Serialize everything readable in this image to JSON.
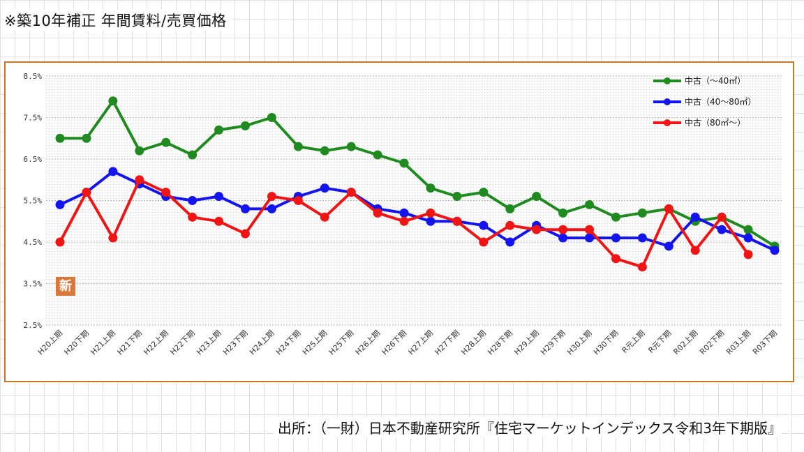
{
  "header": {
    "title": "※築10年補正 年間賃料/売買価格"
  },
  "footer": {
    "source": "出所：（一財）日本不動産研究所『住宅マーケットインデックス令和3年下期版』"
  },
  "badge": {
    "label": "新"
  },
  "chart_data": {
    "type": "line",
    "title": "",
    "xlabel": "",
    "ylabel": "",
    "ylim": [
      2.5,
      8.5
    ],
    "y_ticks": [
      "8.5%",
      "7.5%",
      "6.5%",
      "5.5%",
      "4.5%",
      "3.5%",
      "2.5%"
    ],
    "y_tick_values": [
      8.5,
      7.5,
      6.5,
      5.5,
      4.5,
      3.5,
      2.5
    ],
    "grid": "dotted",
    "legend_position": "top-right",
    "categories": [
      "H20上期",
      "H20下期",
      "H21上期",
      "H21下期",
      "H22上期",
      "H22下期",
      "H23上期",
      "H23下期",
      "H24上期",
      "H24下期",
      "H25上期",
      "H25下期",
      "H26上期",
      "H26下期",
      "H27上期",
      "H27下期",
      "H28上期",
      "H28下期",
      "H29上期",
      "H29下期",
      "H30上期",
      "H30下期",
      "R元上期",
      "R元下期",
      "R02上期",
      "R02下期",
      "R03上期",
      "R03下期"
    ],
    "series": [
      {
        "name": "中古（～40㎡）",
        "color": "#1f8a1f",
        "values": [
          7.0,
          7.0,
          7.9,
          6.7,
          6.9,
          6.6,
          7.2,
          7.3,
          7.5,
          6.8,
          6.7,
          6.8,
          6.6,
          6.4,
          5.8,
          5.6,
          5.7,
          5.3,
          5.6,
          5.2,
          5.4,
          5.1,
          5.2,
          5.3,
          5.0,
          5.1,
          4.8,
          4.4
        ]
      },
      {
        "name": "中古（40～80㎡）",
        "color": "#1414f0",
        "values": [
          5.4,
          5.7,
          6.2,
          5.9,
          5.6,
          5.5,
          5.6,
          5.3,
          5.3,
          5.6,
          5.8,
          5.7,
          5.3,
          5.2,
          5.0,
          5.0,
          4.9,
          4.5,
          4.9,
          4.6,
          4.6,
          4.6,
          4.6,
          4.4,
          5.1,
          4.8,
          4.6,
          4.3
        ]
      },
      {
        "name": "中古（80㎡～）",
        "color": "#f01414",
        "values": [
          4.5,
          5.7,
          4.6,
          6.0,
          5.7,
          5.1,
          5.0,
          4.7,
          5.6,
          5.5,
          5.1,
          5.7,
          5.2,
          5.0,
          5.2,
          5.0,
          4.5,
          4.9,
          4.8,
          4.8,
          4.8,
          4.1,
          3.9,
          5.3,
          4.3,
          5.1,
          4.2,
          null
        ]
      }
    ]
  }
}
